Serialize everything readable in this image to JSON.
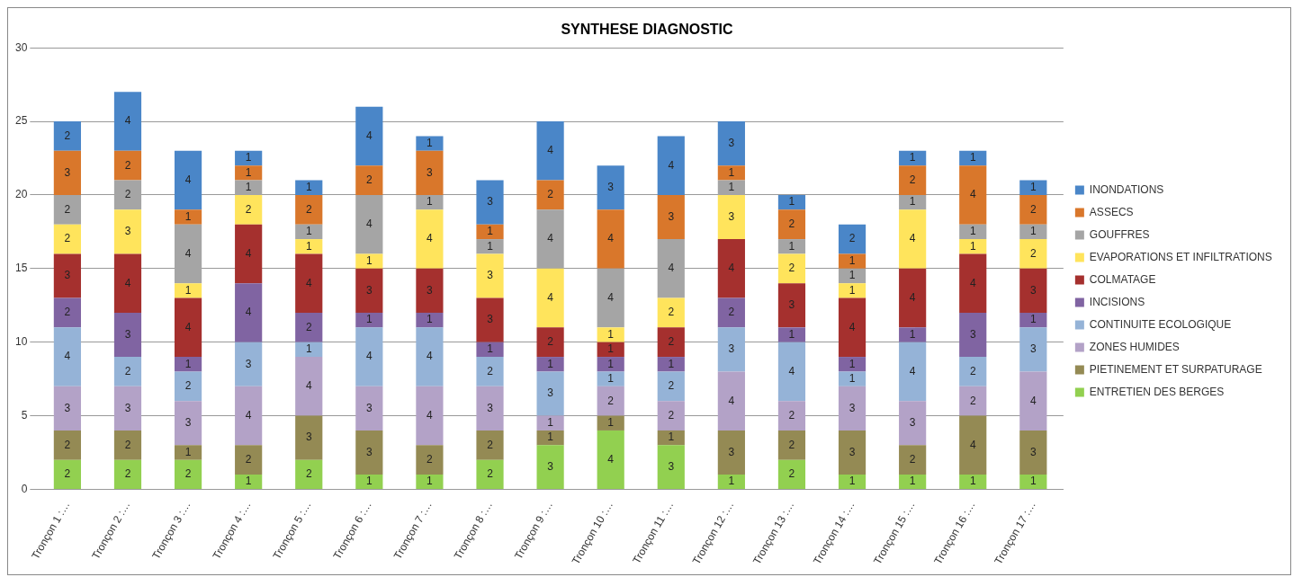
{
  "chart_data": {
    "type": "bar",
    "title": "SYNTHESE DIAGNOSTIC",
    "stacked": true,
    "data_labels": true,
    "grid": "y",
    "legend": "right",
    "categories": [
      "Tronçon 1 :…",
      "Tronçon 2 :…",
      "Tronçon 3 :…",
      "Tronçon 4 :…",
      "Tronçon 5 :…",
      "Tronçon 6 :…",
      "Tronçon 7 :…",
      "Tronçon 8 :…",
      "Tronçon 9 :…",
      "Tronçon 10 :…",
      "Tronçon 11 :…",
      "Tronçon 12 :…",
      "Tronçon 13 :…",
      "Tronçon 14 :…",
      "Tronçon 15 :…",
      "Tronçon 16 :…",
      "Tronçon 17 :…"
    ],
    "ylim": [
      0,
      30
    ],
    "yticks": [
      0,
      5,
      10,
      15,
      20,
      25,
      30
    ],
    "series": [
      {
        "name": "ENTRETIEN DES BERGES",
        "color": "#92d050",
        "values": [
          2,
          2,
          2,
          1,
          2,
          1,
          1,
          2,
          3,
          4,
          3,
          1,
          2,
          1,
          1,
          1,
          1
        ]
      },
      {
        "name": "PIETINEMENT ET SURPATURAGE",
        "color": "#948a54",
        "values": [
          2,
          2,
          1,
          2,
          3,
          3,
          2,
          2,
          1,
          1,
          1,
          3,
          2,
          3,
          2,
          4,
          3
        ]
      },
      {
        "name": "ZONES HUMIDES",
        "color": "#b3a2c7",
        "values": [
          3,
          3,
          3,
          4,
          4,
          3,
          4,
          3,
          1,
          2,
          2,
          4,
          2,
          3,
          3,
          2,
          4
        ]
      },
      {
        "name": "CONTINUITE ECOLOGIQUE",
        "color": "#95b3d7",
        "values": [
          4,
          2,
          2,
          3,
          1,
          4,
          4,
          2,
          3,
          1,
          2,
          3,
          4,
          1,
          4,
          2,
          3
        ]
      },
      {
        "name": "INCISIONS",
        "color": "#8064a2",
        "values": [
          2,
          3,
          1,
          4,
          2,
          1,
          1,
          1,
          1,
          1,
          1,
          2,
          1,
          1,
          1,
          3,
          1
        ]
      },
      {
        "name": "COLMATAGE",
        "color": "#a5302e",
        "values": [
          3,
          4,
          4,
          4,
          4,
          3,
          3,
          3,
          2,
          1,
          2,
          4,
          3,
          4,
          4,
          4,
          3
        ]
      },
      {
        "name": "EVAPORATIONS ET INFILTRATIONS",
        "color": "#ffe45c",
        "values": [
          2,
          3,
          1,
          2,
          1,
          1,
          4,
          3,
          4,
          1,
          2,
          3,
          2,
          1,
          4,
          1,
          2
        ]
      },
      {
        "name": "GOUFFRES",
        "color": "#a5a5a5",
        "values": [
          2,
          2,
          4,
          1,
          1,
          4,
          1,
          1,
          4,
          4,
          4,
          1,
          1,
          1,
          1,
          1,
          1
        ]
      },
      {
        "name": "ASSECS",
        "color": "#d9772b",
        "values": [
          3,
          2,
          1,
          1,
          2,
          2,
          3,
          1,
          2,
          4,
          3,
          1,
          2,
          1,
          2,
          4,
          2
        ]
      },
      {
        "name": "INONDATIONS",
        "color": "#4a86c8",
        "values": [
          2,
          4,
          4,
          1,
          1,
          4,
          1,
          3,
          4,
          3,
          4,
          3,
          1,
          2,
          1,
          1,
          1
        ]
      }
    ]
  }
}
